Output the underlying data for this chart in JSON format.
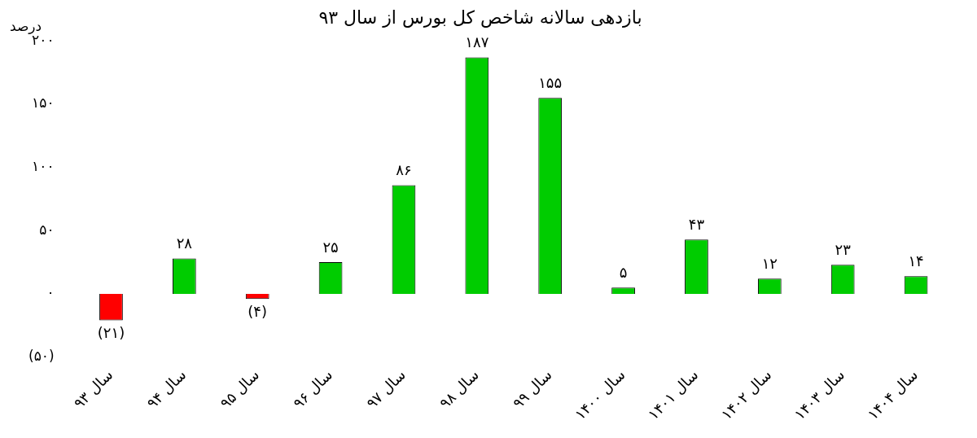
{
  "chart_data": {
    "type": "bar",
    "title": "بازدهی سالانه شاخص کل بورس از سال ۹۳",
    "ylabel": "درصد",
    "categories": [
      "سال ۹۳",
      "سال ۹۴",
      "سال ۹۵",
      "سال ۹۶",
      "سال ۹۷",
      "سال ۹۸",
      "سال ۹۹",
      "سال ۱۴۰۰",
      "سال ۱۴۰۱",
      "سال ۱۴۰۲",
      "سال ۱۴۰۳",
      "سال ۱۴۰۴"
    ],
    "values": [
      -21,
      28,
      -4,
      25,
      86,
      187,
      155,
      5,
      43,
      12,
      23,
      14
    ],
    "colors": [
      "#ff0000",
      "#00cc00",
      "#ff0000",
      "#00cc00",
      "#00cc00",
      "#00cc00",
      "#00cc00",
      "#00cc00",
      "#00cc00",
      "#00cc00",
      "#00cc00",
      "#00cc00"
    ],
    "value_labels": [
      "(۲۱)",
      "۲۸",
      "(۴)",
      "۲۵",
      "۸۶",
      "۱۸۷",
      "۱۵۵",
      "۵",
      "۴۳",
      "۱۲",
      "۲۳",
      "۱۴"
    ],
    "ylim": [
      -50,
      200
    ],
    "yticks": [
      {
        "value": -50,
        "label": "(۵۰)"
      },
      {
        "value": 0,
        "label": "۰"
      },
      {
        "value": 50,
        "label": "۵۰"
      },
      {
        "value": 100,
        "label": "۱۰۰"
      },
      {
        "value": 150,
        "label": "۱۵۰"
      },
      {
        "value": 200,
        "label": "۲۰۰"
      }
    ],
    "grid": false,
    "legend": false
  }
}
